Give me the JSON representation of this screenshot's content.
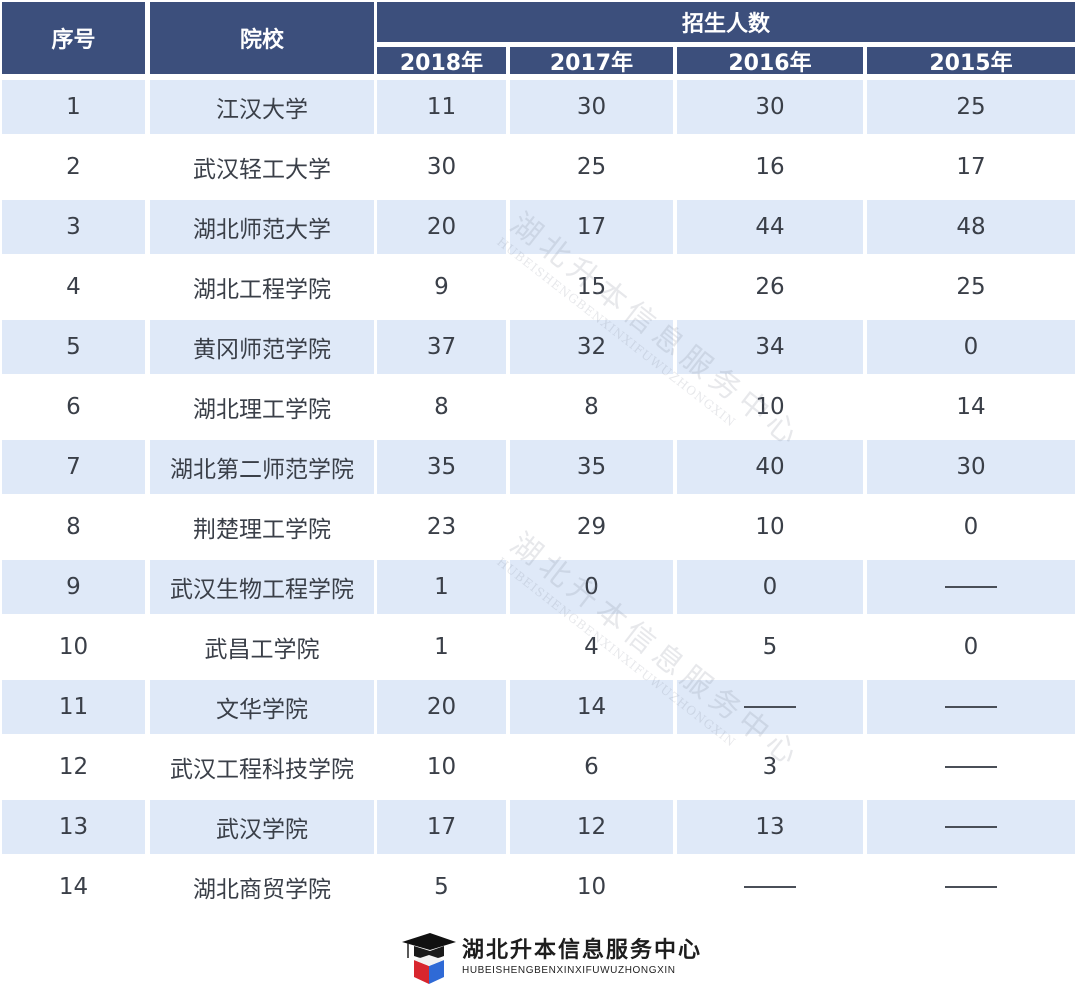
{
  "table": {
    "headers": {
      "index": "序号",
      "school": "院校",
      "group": "招生人数",
      "years": [
        "2018年",
        "2017年",
        "2016年",
        "2015年"
      ]
    },
    "rows": [
      {
        "index": "1",
        "school": "江汉大学",
        "y2018": "11",
        "y2017": "30",
        "y2016": "30",
        "y2015": "25"
      },
      {
        "index": "2",
        "school": "武汉轻工大学",
        "y2018": "30",
        "y2017": "25",
        "y2016": "16",
        "y2015": "17"
      },
      {
        "index": "3",
        "school": "湖北师范大学",
        "y2018": "20",
        "y2017": "17",
        "y2016": "44",
        "y2015": "48"
      },
      {
        "index": "4",
        "school": "湖北工程学院",
        "y2018": "9",
        "y2017": "15",
        "y2016": "26",
        "y2015": "25"
      },
      {
        "index": "5",
        "school": "黄冈师范学院",
        "y2018": "37",
        "y2017": "32",
        "y2016": "34",
        "y2015": "0"
      },
      {
        "index": "6",
        "school": "湖北理工学院",
        "y2018": "8",
        "y2017": "8",
        "y2016": "10",
        "y2015": "14"
      },
      {
        "index": "7",
        "school": "湖北第二师范学院",
        "y2018": "35",
        "y2017": "35",
        "y2016": "40",
        "y2015": "30"
      },
      {
        "index": "8",
        "school": "荆楚理工学院",
        "y2018": "23",
        "y2017": "29",
        "y2016": "10",
        "y2015": "0"
      },
      {
        "index": "9",
        "school": "武汉生物工程学院",
        "y2018": "1",
        "y2017": "0",
        "y2016": "0",
        "y2015": "——"
      },
      {
        "index": "10",
        "school": "武昌工学院",
        "y2018": "1",
        "y2017": "4",
        "y2016": "5",
        "y2015": "0"
      },
      {
        "index": "11",
        "school": "文华学院",
        "y2018": "20",
        "y2017": "14",
        "y2016": "——",
        "y2015": "——"
      },
      {
        "index": "12",
        "school": "武汉工程科技学院",
        "y2018": "10",
        "y2017": "6",
        "y2016": "3",
        "y2015": "——"
      },
      {
        "index": "13",
        "school": "武汉学院",
        "y2018": "17",
        "y2017": "12",
        "y2016": "13",
        "y2015": "——"
      },
      {
        "index": "14",
        "school": "湖北商贸学院",
        "y2018": "5",
        "y2017": "10",
        "y2016": "——",
        "y2015": "——"
      }
    ]
  },
  "watermark": {
    "cn": "湖北升本信息服务中心",
    "en": "HUBEISHENGBENXINXIFUWUZHONGXIN"
  },
  "footer": {
    "brand_cn": "湖北升本信息服务中心",
    "brand_en": "HUBEISHENGBENXINXIFUWUZHONGXIN",
    "logo_icon": "graduation-cap-cube-icon"
  },
  "colors": {
    "header_bg": "#3c4f7c",
    "shaded_row_bg": "#dfe9f8",
    "text": "#3a3f48"
  }
}
